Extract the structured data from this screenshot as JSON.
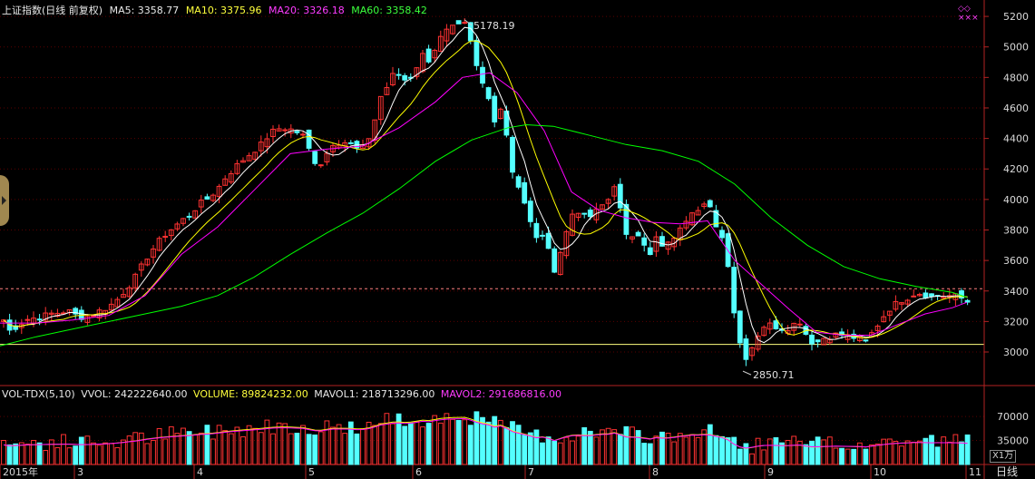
{
  "header": {
    "title": "上证指数(日线 前复权)",
    "ma5": "MA5: 3358.77",
    "ma10": "MA10: 3375.96",
    "ma20": "MA20: 3326.18",
    "ma60": "MA60: 3358.42"
  },
  "vol_header": {
    "title": "VOL-TDX(5,10)",
    "vvol": "VVOL: 242222640.00",
    "volume": "VOLUME: 89824232.00",
    "mavol1": "MAVOL1: 218713296.00",
    "mavol2": "MAVOL2: 291686816.00"
  },
  "top_icons": "◇◇\n×××",
  "period_button": "日线",
  "vol_scale_button": "X1万",
  "colors": {
    "up": "#ff3232",
    "down": "#54ffff",
    "ma5": "#ffffff",
    "ma10": "#ffff00",
    "ma20": "#ff00ff",
    "ma60": "#00ff00",
    "axis": "#b22222"
  },
  "chart_data": {
    "type": "candlestick",
    "title": "上证指数(日线 前复权)",
    "price_axis": {
      "ticks": [
        3000,
        3200,
        3400,
        3600,
        3800,
        4000,
        4200,
        4400,
        4600,
        4800,
        5000,
        5200
      ],
      "range": [
        2780,
        5260
      ]
    },
    "volume_axis": {
      "ticks": [
        35000,
        70000
      ],
      "unit": "X1万",
      "range": [
        0,
        90000
      ]
    },
    "x_labels": [
      "2015年",
      "3",
      "4",
      "5",
      "6",
      "7",
      "8",
      "9",
      "10",
      "11"
    ],
    "annotations": [
      {
        "label": "5178.19",
        "value": 5178.19
      },
      {
        "label": "2850.71",
        "value": 2850.71
      }
    ],
    "reference_lines": [
      3415,
      3050
    ],
    "price_path": [
      [
        0,
        3240
      ],
      [
        8,
        3180
      ],
      [
        12,
        3120
      ],
      [
        18,
        3170
      ],
      [
        25,
        3195
      ],
      [
        30,
        3215
      ],
      [
        40,
        3225
      ],
      [
        45,
        3230
      ],
      [
        50,
        3240
      ],
      [
        55,
        3250
      ],
      [
        62,
        3255
      ],
      [
        70,
        3265
      ],
      [
        75,
        3270
      ],
      [
        80,
        3255
      ],
      [
        84,
        3240
      ],
      [
        90,
        3230
      ],
      [
        98,
        3235
      ],
      [
        105,
        3255
      ],
      [
        110,
        3270
      ],
      [
        118,
        3290
      ],
      [
        125,
        3320
      ],
      [
        132,
        3360
      ],
      [
        140,
        3420
      ],
      [
        148,
        3480
      ],
      [
        156,
        3560
      ],
      [
        164,
        3640
      ],
      [
        172,
        3700
      ],
      [
        180,
        3760
      ],
      [
        190,
        3810
      ],
      [
        200,
        3860
      ],
      [
        210,
        3900
      ],
      [
        218,
        3960
      ],
      [
        225,
        3990
      ],
      [
        232,
        4020
      ],
      [
        240,
        4070
      ],
      [
        248,
        4140
      ],
      [
        256,
        4190
      ],
      [
        264,
        4240
      ],
      [
        272,
        4280
      ],
      [
        280,
        4320
      ],
      [
        288,
        4360
      ],
      [
        296,
        4420
      ],
      [
        304,
        4460
      ],
      [
        312,
        4470
      ],
      [
        320,
        4460
      ],
      [
        328,
        4440
      ],
      [
        336,
        4410
      ],
      [
        344,
        4270
      ],
      [
        352,
        4220
      ],
      [
        360,
        4300
      ],
      [
        368,
        4380
      ],
      [
        376,
        4370
      ],
      [
        384,
        4380
      ],
      [
        392,
        4330
      ],
      [
        400,
        4340
      ],
      [
        408,
        4420
      ],
      [
        415,
        4560
      ],
      [
        420,
        4680
      ],
      [
        428,
        4750
      ],
      [
        436,
        4850
      ],
      [
        444,
        4780
      ],
      [
        452,
        4800
      ],
      [
        460,
        4880
      ],
      [
        468,
        4970
      ],
      [
        474,
        4900
      ],
      [
        480,
        5000
      ],
      [
        488,
        5080
      ],
      [
        496,
        5120
      ],
      [
        504,
        5130
      ],
      [
        512,
        5150
      ],
      [
        518,
        5050
      ],
      [
        524,
        4900
      ],
      [
        530,
        4780
      ],
      [
        538,
        4700
      ],
      [
        544,
        4500
      ],
      [
        552,
        4600
      ],
      [
        558,
        4450
      ],
      [
        564,
        4200
      ],
      [
        570,
        4100
      ],
      [
        576,
        4000
      ],
      [
        584,
        3880
      ],
      [
        592,
        3720
      ],
      [
        600,
        3800
      ],
      [
        608,
        3600
      ],
      [
        612,
        3500
      ],
      [
        618,
        3660
      ],
      [
        624,
        3800
      ],
      [
        630,
        3880
      ],
      [
        640,
        3920
      ],
      [
        648,
        3860
      ],
      [
        656,
        3930
      ],
      [
        664,
        3980
      ],
      [
        672,
        3990
      ],
      [
        678,
        4080
      ],
      [
        684,
        3950
      ],
      [
        692,
        3750
      ],
      [
        700,
        3780
      ],
      [
        708,
        3720
      ],
      [
        716,
        3620
      ],
      [
        724,
        3750
      ],
      [
        732,
        3690
      ],
      [
        740,
        3720
      ],
      [
        748,
        3820
      ],
      [
        756,
        3870
      ],
      [
        764,
        3940
      ],
      [
        772,
        3920
      ],
      [
        780,
        3990
      ],
      [
        786,
        3880
      ],
      [
        792,
        3800
      ],
      [
        800,
        3700
      ],
      [
        806,
        3420
      ],
      [
        812,
        3130
      ],
      [
        818,
        3020
      ],
      [
        824,
        2950
      ],
      [
        830,
        3050
      ],
      [
        836,
        3120
      ],
      [
        842,
        3170
      ],
      [
        850,
        3180
      ],
      [
        858,
        3160
      ],
      [
        866,
        3150
      ],
      [
        874,
        3180
      ],
      [
        882,
        3200
      ],
      [
        890,
        3100
      ],
      [
        898,
        3050
      ],
      [
        906,
        3090
      ],
      [
        914,
        3100
      ],
      [
        922,
        3115
      ],
      [
        930,
        3110
      ],
      [
        938,
        3100
      ],
      [
        946,
        3090
      ],
      [
        954,
        3060
      ],
      [
        962,
        3130
      ],
      [
        970,
        3200
      ],
      [
        978,
        3270
      ],
      [
        986,
        3310
      ],
      [
        994,
        3340
      ],
      [
        1002,
        3360
      ],
      [
        1010,
        3390
      ],
      [
        1018,
        3380
      ],
      [
        1026,
        3360
      ],
      [
        1034,
        3370
      ],
      [
        1042,
        3365
      ],
      [
        1050,
        3370
      ],
      [
        1058,
        3360
      ],
      [
        1066,
        3330
      ]
    ],
    "ma_paths": {
      "MA20": [
        [
          0,
          3190
        ],
        [
          40,
          3190
        ],
        [
          80,
          3210
        ],
        [
          120,
          3240
        ],
        [
          160,
          3370
        ],
        [
          200,
          3640
        ],
        [
          240,
          3820
        ],
        [
          280,
          4060
        ],
        [
          320,
          4300
        ],
        [
          360,
          4330
        ],
        [
          400,
          4350
        ],
        [
          440,
          4470
        ],
        [
          480,
          4640
        ],
        [
          510,
          4800
        ],
        [
          540,
          4830
        ],
        [
          570,
          4700
        ],
        [
          600,
          4450
        ],
        [
          630,
          4050
        ],
        [
          660,
          3930
        ],
        [
          690,
          3880
        ],
        [
          720,
          3850
        ],
        [
          750,
          3840
        ],
        [
          780,
          3860
        ],
        [
          810,
          3600
        ],
        [
          840,
          3440
        ],
        [
          870,
          3280
        ],
        [
          900,
          3130
        ],
        [
          930,
          3110
        ],
        [
          960,
          3110
        ],
        [
          990,
          3180
        ],
        [
          1020,
          3250
        ],
        [
          1050,
          3290
        ],
        [
          1066,
          3326
        ]
      ],
      "MA60": [
        [
          0,
          3040
        ],
        [
          40,
          3100
        ],
        [
          80,
          3150
        ],
        [
          120,
          3200
        ],
        [
          160,
          3250
        ],
        [
          200,
          3300
        ],
        [
          240,
          3370
        ],
        [
          280,
          3490
        ],
        [
          320,
          3640
        ],
        [
          360,
          3780
        ],
        [
          400,
          3910
        ],
        [
          440,
          4070
        ],
        [
          480,
          4250
        ],
        [
          520,
          4390
        ],
        [
          560,
          4470
        ],
        [
          580,
          4490
        ],
        [
          610,
          4480
        ],
        [
          650,
          4420
        ],
        [
          690,
          4360
        ],
        [
          730,
          4320
        ],
        [
          770,
          4250
        ],
        [
          810,
          4100
        ],
        [
          850,
          3880
        ],
        [
          890,
          3700
        ],
        [
          930,
          3560
        ],
        [
          970,
          3480
        ],
        [
          1010,
          3430
        ],
        [
          1050,
          3390
        ],
        [
          1066,
          3358
        ]
      ]
    }
  }
}
